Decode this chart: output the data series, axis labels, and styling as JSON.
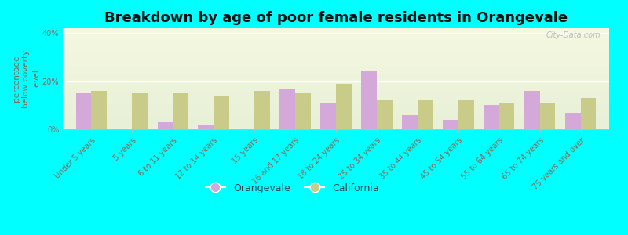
{
  "title": "Breakdown by age of poor female residents in Orangevale",
  "ylabel": "percentage\nbelow poverty\nlevel",
  "categories": [
    "Under 5 years",
    "5 years",
    "6 to 11 years",
    "12 to 14 years",
    "15 years",
    "16 and 17 years",
    "18 to 24 years",
    "25 to 34 years",
    "35 to 44 years",
    "45 to 54 years",
    "55 to 64 years",
    "65 to 74 years",
    "75 years and over"
  ],
  "orangevale": [
    15,
    0,
    3,
    2,
    0,
    17,
    11,
    24,
    6,
    4,
    10,
    16,
    7
  ],
  "california": [
    16,
    15,
    15,
    14,
    16,
    15,
    19,
    12,
    12,
    12,
    11,
    11,
    13
  ],
  "orangevale_color": "#d4a8d8",
  "california_color": "#c8cc88",
  "plot_bg_top": "#f5f8e0",
  "plot_bg_bottom": "#e8f0d8",
  "ylim": [
    0,
    42
  ],
  "yticks": [
    0,
    20,
    40
  ],
  "ytick_labels": [
    "0%",
    "20%",
    "40%"
  ],
  "bar_width": 0.38,
  "figure_bg": "#00ffff",
  "watermark": "City-Data.com",
  "title_fontsize": 13,
  "axis_label_fontsize": 7.5,
  "tick_fontsize": 7,
  "legend_fontsize": 9,
  "ytick_color": "#886655",
  "xtick_color": "#886655",
  "ylabel_color": "#886655",
  "grid_color": "#ffffff",
  "spine_color": "#bbbbbb"
}
